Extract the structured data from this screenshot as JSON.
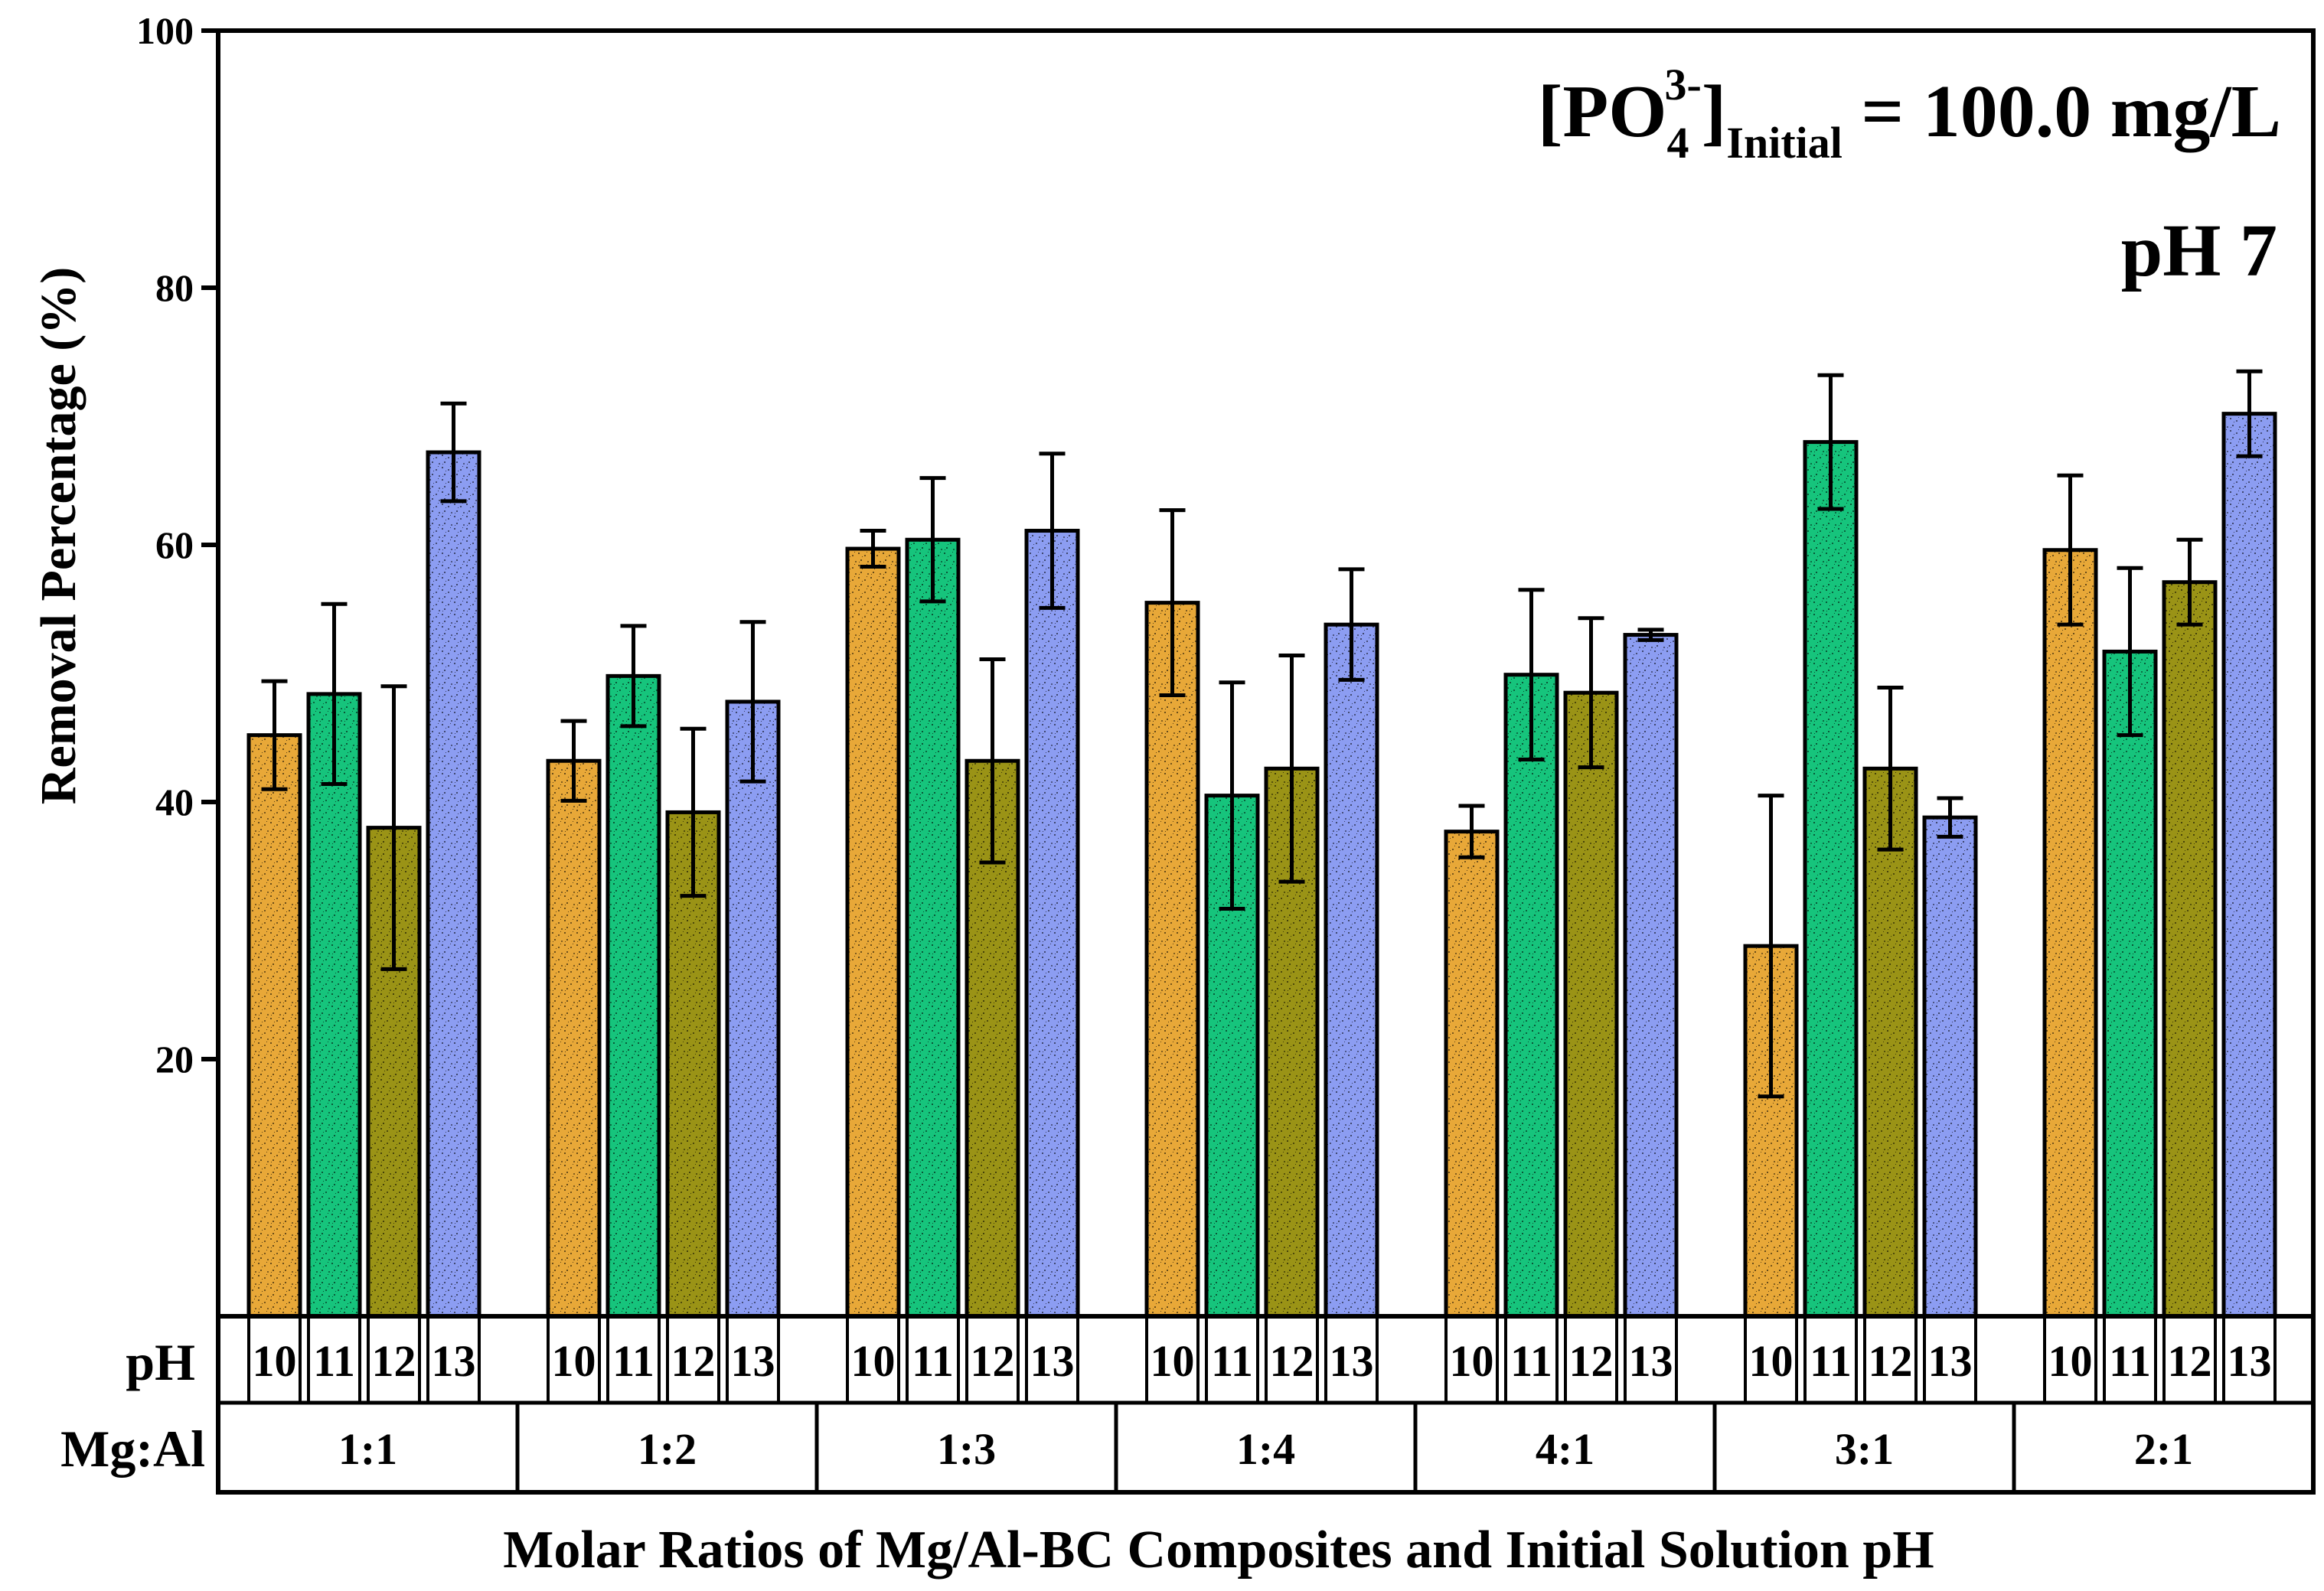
{
  "chart_data": {
    "type": "bar",
    "ylabel": "Removal Percentage (%)",
    "xlabel": "Molar Ratios of Mg/Al-BC Composites and Initial Solution pH",
    "ylim": [
      0,
      100
    ],
    "yticks": [
      20,
      40,
      60,
      80,
      100
    ],
    "annotations": {
      "concentration": {
        "prefix": "[PO",
        "subscript1": "4",
        "superscript": "3-",
        "bracket": "]",
        "subscript2": "Initial",
        "suffix": " = 100.0 mg/L"
      },
      "ph": "pH 7"
    },
    "table_row_labels": {
      "ph": "pH",
      "ratio": "Mg:Al"
    },
    "groups": [
      "1:1",
      "1:2",
      "1:3",
      "1:4",
      "4:1",
      "3:1",
      "2:1"
    ],
    "ph_levels": [
      "10",
      "11",
      "12",
      "13"
    ],
    "series": [
      {
        "ph": "10",
        "color": "#e8a838",
        "values": [
          45.2,
          43.2,
          59.7,
          55.5,
          37.7,
          28.8,
          59.6
        ],
        "errors": [
          4.2,
          3.1,
          1.4,
          7.2,
          2.0,
          11.7,
          5.8
        ]
      },
      {
        "ph": "11",
        "color": "#16c47c",
        "values": [
          48.4,
          49.8,
          60.4,
          40.5,
          49.9,
          68.0,
          51.7
        ],
        "errors": [
          7.0,
          3.9,
          4.8,
          8.8,
          6.6,
          5.2,
          6.5
        ]
      },
      {
        "ph": "12",
        "color": "#9a9316",
        "values": [
          38.0,
          39.2,
          43.2,
          42.6,
          48.5,
          42.6,
          57.1
        ],
        "errors": [
          11.0,
          6.5,
          7.9,
          8.8,
          5.8,
          6.3,
          3.3
        ]
      },
      {
        "ph": "13",
        "color": "#8c9df2",
        "values": [
          67.2,
          47.8,
          61.1,
          53.8,
          53.0,
          38.8,
          70.2
        ],
        "errors": [
          3.8,
          6.2,
          6.0,
          4.3,
          0.4,
          1.5,
          3.3
        ]
      }
    ]
  }
}
